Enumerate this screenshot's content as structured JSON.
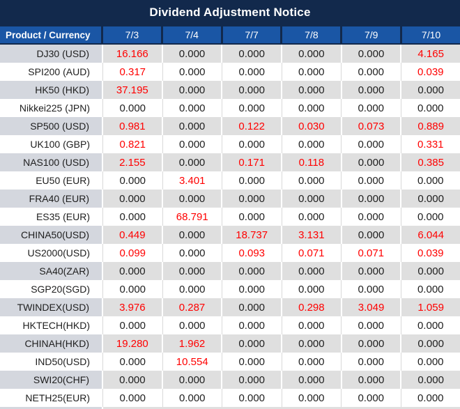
{
  "title": "Dividend Adjustment Notice",
  "header": {
    "product_label": "Product / Currency",
    "dates": [
      "7/3",
      "7/4",
      "7/7",
      "7/8",
      "7/9",
      "7/10"
    ]
  },
  "rows": [
    {
      "product": "DJ30 (USD)",
      "values": [
        "16.166",
        "0.000",
        "0.000",
        "0.000",
        "0.000",
        "4.165"
      ]
    },
    {
      "product": "SPI200 (AUD)",
      "values": [
        "0.317",
        "0.000",
        "0.000",
        "0.000",
        "0.000",
        "0.039"
      ]
    },
    {
      "product": "HK50 (HKD)",
      "values": [
        "37.195",
        "0.000",
        "0.000",
        "0.000",
        "0.000",
        "0.000"
      ]
    },
    {
      "product": "Nikkei225 (JPN)",
      "values": [
        "0.000",
        "0.000",
        "0.000",
        "0.000",
        "0.000",
        "0.000"
      ]
    },
    {
      "product": "SP500 (USD)",
      "values": [
        "0.981",
        "0.000",
        "0.122",
        "0.030",
        "0.073",
        "0.889"
      ]
    },
    {
      "product": "UK100 (GBP)",
      "values": [
        "0.821",
        "0.000",
        "0.000",
        "0.000",
        "0.000",
        "0.331"
      ]
    },
    {
      "product": "NAS100 (USD)",
      "values": [
        "2.155",
        "0.000",
        "0.171",
        "0.118",
        "0.000",
        "0.385"
      ]
    },
    {
      "product": "EU50 (EUR)",
      "values": [
        "0.000",
        "3.401",
        "0.000",
        "0.000",
        "0.000",
        "0.000"
      ]
    },
    {
      "product": "FRA40 (EUR)",
      "values": [
        "0.000",
        "0.000",
        "0.000",
        "0.000",
        "0.000",
        "0.000"
      ]
    },
    {
      "product": "ES35 (EUR)",
      "values": [
        "0.000",
        "68.791",
        "0.000",
        "0.000",
        "0.000",
        "0.000"
      ]
    },
    {
      "product": "CHINA50(USD)",
      "values": [
        "0.449",
        "0.000",
        "18.737",
        "3.131",
        "0.000",
        "6.044"
      ]
    },
    {
      "product": "US2000(USD)",
      "values": [
        "0.099",
        "0.000",
        "0.093",
        "0.071",
        "0.071",
        "0.039"
      ]
    },
    {
      "product": "SA40(ZAR)",
      "values": [
        "0.000",
        "0.000",
        "0.000",
        "0.000",
        "0.000",
        "0.000"
      ]
    },
    {
      "product": "SGP20(SGD)",
      "values": [
        "0.000",
        "0.000",
        "0.000",
        "0.000",
        "0.000",
        "0.000"
      ]
    },
    {
      "product": "TWINDEX(USD)",
      "values": [
        "3.976",
        "0.287",
        "0.000",
        "0.298",
        "3.049",
        "1.059"
      ]
    },
    {
      "product": "HKTECH(HKD)",
      "values": [
        "0.000",
        "0.000",
        "0.000",
        "0.000",
        "0.000",
        "0.000"
      ]
    },
    {
      "product": "CHINAH(HKD)",
      "values": [
        "19.280",
        "1.962",
        "0.000",
        "0.000",
        "0.000",
        "0.000"
      ]
    },
    {
      "product": "IND50(USD)",
      "values": [
        "0.000",
        "10.554",
        "0.000",
        "0.000",
        "0.000",
        "0.000"
      ]
    },
    {
      "product": "SWI20(CHF)",
      "values": [
        "0.000",
        "0.000",
        "0.000",
        "0.000",
        "0.000",
        "0.000"
      ]
    },
    {
      "product": "NETH25(EUR)",
      "values": [
        "0.000",
        "0.000",
        "0.000",
        "0.000",
        "0.000",
        "0.000"
      ]
    }
  ],
  "colors": {
    "title_bg": "#12294C",
    "header_bg": "#1A56A5",
    "header_text": "#FFFFFF",
    "row_gray_label_bg": "#D4D7DE",
    "row_gray_value_bg": "#DFDFDF",
    "row_white_bg": "#FFFFFF",
    "gridline": "#D9D9D9",
    "nonzero_value": "#FF0000",
    "zero_value": "#1E1E1E"
  },
  "zero_display": "0.000"
}
